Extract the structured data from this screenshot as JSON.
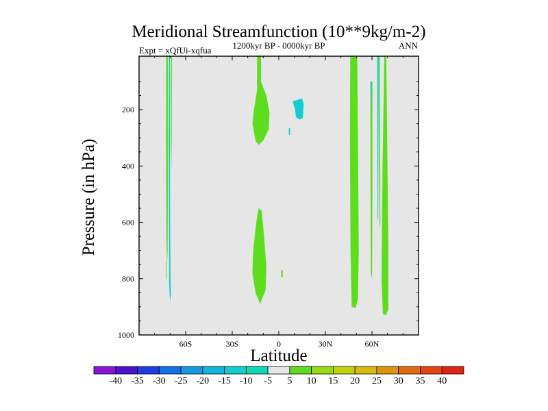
{
  "chart_data": {
    "type": "filled-contour",
    "title": "Meridional Streamfunction (10**9kg/m-2)",
    "left_string": "Expt = xQfUi-xqfua",
    "center_string": "1200kyr BP - 0000kyr BP",
    "right_string": "ANN",
    "xlabel": "Latitude",
    "ylabel": "Pressure (in hPa)",
    "xlim": [
      -90,
      90
    ],
    "ylim": [
      1000,
      10
    ],
    "xticks": [
      -60,
      -30,
      0,
      30,
      60
    ],
    "xtick_labels": [
      "60S",
      "30S",
      "0",
      "30N",
      "60N"
    ],
    "yticks": [
      200,
      400,
      600,
      800,
      1000
    ],
    "ytick_labels": [
      "200",
      "400",
      "600",
      "800",
      "1000"
    ],
    "background_color": "#e6e6e6",
    "colorbar": {
      "levels": [
        -40,
        -35,
        -30,
        -25,
        -20,
        -15,
        -10,
        -5,
        5,
        10,
        15,
        20,
        25,
        30,
        35,
        40
      ],
      "labels": [
        "-40",
        "-35",
        "-30",
        "-25",
        "-20",
        "-15",
        "-10",
        "-5",
        "5",
        "10",
        "15",
        "20",
        "25",
        "30",
        "35",
        "40"
      ],
      "colors": [
        "#8a14d6",
        "#4b12cf",
        "#1f3ce0",
        "#1570e0",
        "#139ae0",
        "#10b6de",
        "#12cdd0",
        "#10d8b4",
        "#e6e6e6",
        "#5edc1e",
        "#96dc14",
        "#c4d20e",
        "#dcb80e",
        "#e0940e",
        "#e06a0e",
        "#e0460e",
        "#dc2410"
      ]
    },
    "regions": [
      {
        "value": 7.5,
        "color": "#5edc1e",
        "outline": [
          [
            -72.5,
            10
          ],
          [
            -71.5,
            10
          ],
          [
            -71.3,
            300
          ],
          [
            -71.6,
            700
          ],
          [
            -72,
            760
          ],
          [
            -72.4,
            650
          ],
          [
            -72.6,
            300
          ]
        ]
      },
      {
        "value": -7.5,
        "color": "#12cdd0",
        "outline": [
          [
            -70.8,
            10
          ],
          [
            -70.1,
            10
          ],
          [
            -70,
            500
          ],
          [
            -69.8,
            780
          ],
          [
            -69.5,
            860
          ],
          [
            -70.1,
            880
          ],
          [
            -70.6,
            820
          ],
          [
            -70.8,
            500
          ]
        ]
      },
      {
        "value": 7.5,
        "color": "#5edc1e",
        "outline": [
          [
            -69.4,
            10
          ],
          [
            -68.8,
            10
          ],
          [
            -68.9,
            300
          ],
          [
            -69.2,
            420
          ],
          [
            -69.4,
            300
          ]
        ]
      },
      {
        "value": 7.5,
        "color": "#5edc1e",
        "outline": [
          [
            -72.6,
            740
          ],
          [
            -72.2,
            740
          ],
          [
            -72.2,
            800
          ],
          [
            -72.6,
            800
          ]
        ]
      },
      {
        "value": 7.5,
        "color": "#5edc1e",
        "outline": [
          [
            -14,
            10
          ],
          [
            -11.5,
            10
          ],
          [
            -11.5,
            100
          ],
          [
            -8,
            150
          ],
          [
            -6,
            210
          ],
          [
            -6.5,
            270
          ],
          [
            -10,
            310
          ],
          [
            -13,
            325
          ],
          [
            -15,
            310
          ],
          [
            -17,
            250
          ],
          [
            -16,
            200
          ],
          [
            -14,
            130
          ]
        ]
      },
      {
        "value": 7.5,
        "color": "#5edc1e",
        "outline": [
          [
            -13,
            550
          ],
          [
            -11,
            560
          ],
          [
            -9.5,
            650
          ],
          [
            -8,
            760
          ],
          [
            -8.5,
            840
          ],
          [
            -12,
            890
          ],
          [
            -15,
            850
          ],
          [
            -17,
            780
          ],
          [
            -16.5,
            700
          ],
          [
            -14.5,
            600
          ]
        ]
      },
      {
        "value": 7.5,
        "color": "#5edc1e",
        "outline": [
          [
            1.5,
            770
          ],
          [
            2.5,
            770
          ],
          [
            2.5,
            795
          ],
          [
            1.5,
            795
          ]
        ]
      },
      {
        "value": -7.5,
        "color": "#12cdd0",
        "outline": [
          [
            9,
            170
          ],
          [
            15,
            160
          ],
          [
            16,
            180
          ],
          [
            15.5,
            230
          ],
          [
            13,
            235
          ],
          [
            11,
            225
          ],
          [
            10.5,
            200
          ]
        ]
      },
      {
        "value": -7.5,
        "color": "#12cdd0",
        "outline": [
          [
            6.5,
            265
          ],
          [
            7.3,
            265
          ],
          [
            7.3,
            290
          ],
          [
            6.5,
            290
          ]
        ]
      },
      {
        "value": 7.5,
        "color": "#5edc1e",
        "outline": [
          [
            46,
            10
          ],
          [
            50.5,
            10
          ],
          [
            51,
            300
          ],
          [
            51.5,
            700
          ],
          [
            51,
            870
          ],
          [
            49.5,
            905
          ],
          [
            47,
            900
          ],
          [
            46.2,
            700
          ],
          [
            45.8,
            300
          ]
        ]
      },
      {
        "value": 7.5,
        "color": "#5edc1e",
        "outline": [
          [
            59,
            100
          ],
          [
            60.3,
            100
          ],
          [
            60.3,
            500
          ],
          [
            60.1,
            800
          ],
          [
            59.3,
            780
          ],
          [
            59.1,
            500
          ]
        ]
      },
      {
        "value": -7.5,
        "color": "#12cdd0",
        "outline": [
          [
            59.3,
            100
          ],
          [
            59.9,
            100
          ],
          [
            59.7,
            200
          ],
          [
            59.4,
            200
          ]
        ]
      },
      {
        "value": -7.5,
        "color": "#12cdd0",
        "outline": [
          [
            63.4,
            10
          ],
          [
            64.4,
            10
          ],
          [
            64.2,
            300
          ],
          [
            64,
            590
          ],
          [
            63.6,
            590
          ],
          [
            63.5,
            300
          ]
        ]
      },
      {
        "value": 7.5,
        "color": "#5edc1e",
        "outline": [
          [
            64.6,
            10
          ],
          [
            65.2,
            10
          ],
          [
            65.4,
            600
          ],
          [
            64.9,
            620
          ],
          [
            64.6,
            400
          ]
        ]
      },
      {
        "value": 7.5,
        "color": "#5edc1e",
        "outline": [
          [
            68,
            10
          ],
          [
            69.2,
            10
          ],
          [
            69.8,
            300
          ],
          [
            70.6,
            700
          ],
          [
            70.5,
            910
          ],
          [
            69,
            930
          ],
          [
            67,
            925
          ],
          [
            66.2,
            800
          ],
          [
            66.8,
            400
          ],
          [
            67.6,
            150
          ]
        ]
      }
    ]
  }
}
